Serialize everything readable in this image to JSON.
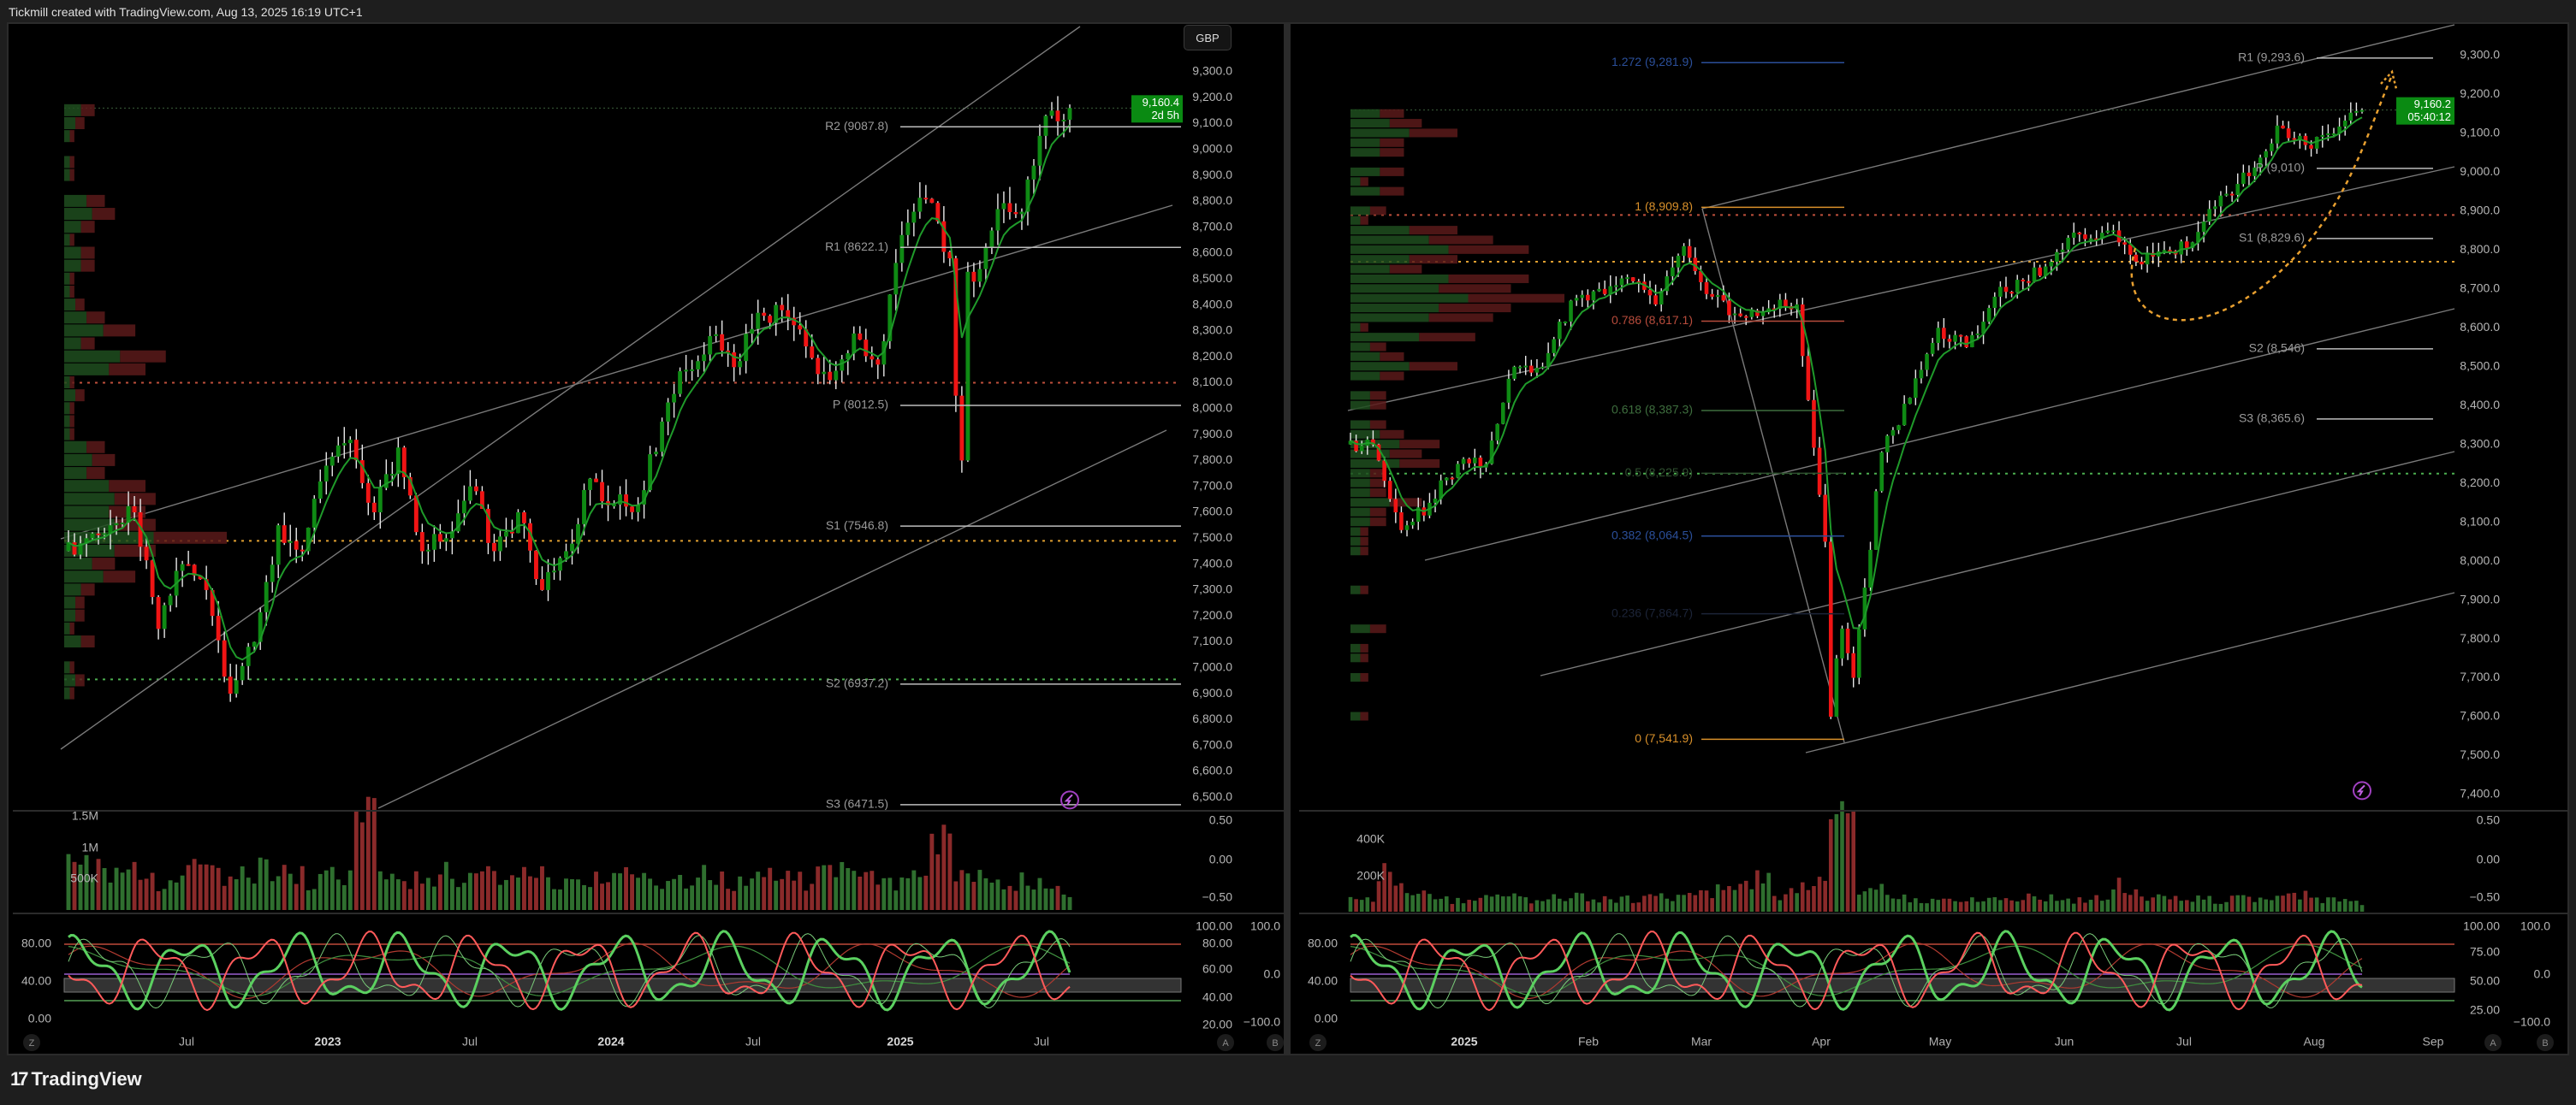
{
  "header": {
    "title": "Tickmill created with TradingView.com, Aug 13, 2025 16:19 UTC+1"
  },
  "footer": {
    "logo_text": "TradingView"
  },
  "colors": {
    "up": "#0f8a14",
    "down": "#f01414",
    "ma_green": "#1f9a2a",
    "ma_red": "#d01818",
    "osc_green": "#5bd060",
    "osc_red": "#ff5a5a",
    "fib_blue": "#2b4f9a",
    "fib_orange": "#d9902a",
    "fib_red": "#b84c3c",
    "fib_green": "#3e6e3e",
    "pivot": "#bdbdbd",
    "channel": "#7a7a7a",
    "price_badge": "#0a8a12"
  },
  "left_chart": {
    "currency_button": "GBP",
    "price_axis": [
      "9,300.0",
      "9,200.0",
      "9,100.0",
      "9,000.0",
      "8,900.0",
      "8,800.0",
      "8,700.0",
      "8,600.0",
      "8,500.0",
      "8,400.0",
      "8,300.0",
      "8,200.0",
      "8,100.0",
      "8,000.0",
      "7,900.0",
      "7,800.0",
      "7,700.0",
      "7,600.0",
      "7,500.0",
      "7,400.0",
      "7,300.0",
      "7,200.0",
      "7,100.0",
      "7,000.0",
      "6,900.0",
      "6,800.0",
      "6,700.0",
      "6,600.0",
      "6,500.0"
    ],
    "current_price": "9,160.4",
    "countdown": "2d 5h",
    "pivots": [
      {
        "label": "R2 (9087.8)",
        "value": 9087.8
      },
      {
        "label": "R1 (8622.1)",
        "value": 8622.1
      },
      {
        "label": "P (8012.5)",
        "value": 8012.5
      },
      {
        "label": "S1 (7546.8)",
        "value": 7546.8
      },
      {
        "label": "S2 (6937.2)",
        "value": 6937.2
      },
      {
        "label": "S3 (6471.5)",
        "value": 6471.5
      }
    ],
    "dotted_levels": [
      {
        "value": 8100,
        "color": "#c0503c"
      },
      {
        "value": 7490,
        "color": "#e0a030"
      },
      {
        "value": 6955,
        "color": "#4caf50"
      }
    ],
    "time_axis": [
      "Jul",
      "2023",
      "Jul",
      "2024",
      "Jul",
      "2025",
      "Jul"
    ],
    "volume_axis": [
      "1.5M",
      "1M",
      "500K"
    ],
    "volume_right_axis": [
      "0.50",
      "0.00",
      "−0.50"
    ],
    "osc_axis_left": [
      "80.00",
      "40.00",
      "0.00"
    ],
    "osc_axis_right": [
      "100.00",
      "80.00",
      "60.00",
      "40.00",
      "20.00"
    ],
    "osc_axis_b": [
      "100.0",
      "0.0",
      "−100.0"
    ],
    "scale_buttons": [
      "Z",
      "A",
      "B"
    ],
    "chart_data": {
      "type": "candlestick",
      "period": "monthly closes, Feb 2022 – Aug 2025",
      "closes": [
        7450,
        7500,
        7550,
        7600,
        7150,
        7400,
        7300,
        6900,
        7100,
        7550,
        7450,
        7780,
        7880,
        7600,
        7850,
        7450,
        7500,
        7700,
        7450,
        7600,
        7300,
        7450,
        7730,
        7630,
        7630,
        7950,
        8150,
        8280,
        8160,
        8370,
        8380,
        8240,
        8110,
        8290,
        8170,
        8670,
        8810,
        8580,
        8490,
        8770,
        8760,
        9130,
        9160
      ],
      "volume_k": [
        700,
        900,
        650,
        600,
        500,
        550,
        700,
        600,
        550,
        650,
        600,
        500,
        550,
        1400,
        500,
        550,
        600,
        500,
        560,
        520,
        600,
        500,
        520,
        550,
        650,
        480,
        550,
        600,
        500,
        520,
        550,
        500,
        600,
        800,
        550,
        500,
        550,
        1100,
        600,
        500,
        500,
        450,
        300
      ],
      "ylim": [
        6450,
        9350
      ]
    }
  },
  "right_chart": {
    "price_axis": [
      "9,300.0",
      "9,200.0",
      "9,100.0",
      "9,000.0",
      "8,900.0",
      "8,800.0",
      "8,700.0",
      "8,600.0",
      "8,500.0",
      "8,400.0",
      "8,300.0",
      "8,200.0",
      "8,100.0",
      "8,000.0",
      "7,900.0",
      "7,800.0",
      "7,700.0",
      "7,600.0",
      "7,500.0",
      "7,400.0"
    ],
    "current_price": "9,160.2",
    "countdown": "05:40:12",
    "pivots": [
      {
        "label": "R1 (9,293.6)",
        "value": 9293.6
      },
      {
        "label": "P (9,010)",
        "value": 9010
      },
      {
        "label": "S1 (8,829.6)",
        "value": 8829.6
      },
      {
        "label": "S2 (8,546)",
        "value": 8546
      },
      {
        "label": "S3 (8,365.6)",
        "value": 8365.6
      }
    ],
    "fibs": [
      {
        "label": "1.272 (9,281.9)",
        "value": 9281.9,
        "color": "#2b4f9a"
      },
      {
        "label": "1 (8,909.8)",
        "value": 8909.8,
        "color": "#d9902a"
      },
      {
        "label": "0.786 (8,617.1)",
        "value": 8617.1,
        "color": "#b84c3c"
      },
      {
        "label": "0.618 (8,387.3)",
        "value": 8387.3,
        "color": "#3e6e3e"
      },
      {
        "label": "0.5 (8,225.9)",
        "value": 8225.9,
        "color": "#2f4f2f"
      },
      {
        "label": "0.382 (8,064.5)",
        "value": 8064.5,
        "color": "#2b4f9a"
      },
      {
        "label": "0.236 (7,864.7)",
        "value": 7864.7,
        "color": "#1c2438"
      },
      {
        "label": "0 (7,541.9)",
        "value": 7541.9,
        "color": "#d9902a"
      }
    ],
    "dotted_levels": [
      {
        "value": 8890,
        "color": "#c0503c"
      },
      {
        "value": 8770,
        "color": "#e0a030"
      },
      {
        "value": 8225,
        "color": "#4caf50"
      }
    ],
    "time_axis": [
      "2025",
      "Feb",
      "Mar",
      "Apr",
      "May",
      "Jun",
      "Jul",
      "Aug",
      "Sep"
    ],
    "volume_axis": [
      "400K",
      "200K"
    ],
    "volume_right_axis": [
      "0.50",
      "0.00",
      "−0.50"
    ],
    "osc_axis_left": [
      "80.00",
      "40.00",
      "0.00"
    ],
    "osc_axis_right": [
      "100.00",
      "75.00",
      "50.00",
      "25.00"
    ],
    "osc_axis_b": [
      "100.0",
      "0.0",
      "−100.0"
    ],
    "scale_buttons": [
      "Z",
      "A",
      "B"
    ],
    "chart_data": {
      "type": "candlestick",
      "period": "weekly closes, Dec 2 2024 – Aug 11 2025",
      "closes": [
        8300,
        8300,
        8080,
        8150,
        8250,
        8250,
        8500,
        8500,
        8670,
        8700,
        8730,
        8660,
        8810,
        8680,
        8630,
        8650,
        8660,
        8050,
        7700,
        8280,
        8420,
        8600,
        8550,
        8680,
        8720,
        8770,
        8840,
        8850,
        8770,
        8800,
        8820,
        8940,
        8990,
        9120,
        9070,
        9100,
        9160
      ],
      "volume_k": [
        70,
        80,
        210,
        90,
        70,
        75,
        80,
        70,
        75,
        80,
        70,
        75,
        80,
        90,
        120,
        200,
        100,
        160,
        480,
        120,
        80,
        70,
        75,
        70,
        70,
        80,
        70,
        75,
        150,
        80,
        70,
        70,
        75,
        80,
        90,
        75,
        60
      ],
      "ylim": [
        7380,
        9330
      ]
    }
  }
}
